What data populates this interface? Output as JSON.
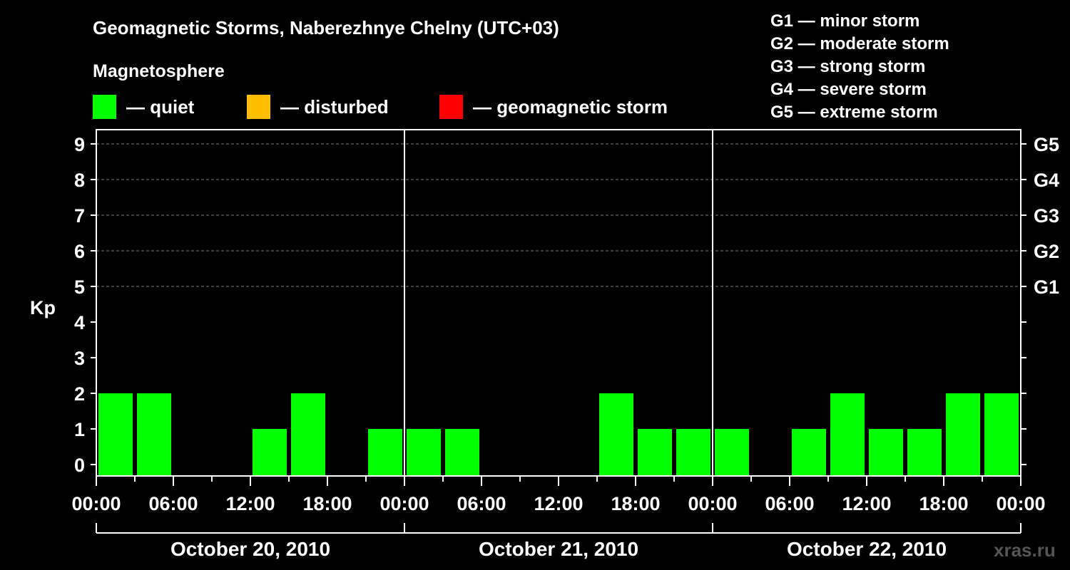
{
  "title": "Geomagnetic Storms, Naberezhnye Chelny (UTC+03)",
  "subtitle": "Magnetosphere",
  "legend": [
    {
      "label": "— quiet",
      "color": "#00ff00",
      "name": "quiet"
    },
    {
      "label": "— disturbed",
      "color": "#ffbf00",
      "name": "disturbed"
    },
    {
      "label": "— geomagnetic storm",
      "color": "#ff0000",
      "name": "storm"
    }
  ],
  "g_scale": [
    "G1 — minor storm",
    "G2 — moderate storm",
    "G3 — strong storm",
    "G4 — severe storm",
    "G5 — extreme storm"
  ],
  "watermark": "xras.ru",
  "chart_data": {
    "type": "bar",
    "title": "Geomagnetic Storms, Naberezhnye Chelny (UTC+03)",
    "ylabel": "Kp",
    "ylim": [
      0,
      9
    ],
    "y_ticks": [
      "0",
      "1",
      "2",
      "3",
      "4",
      "5",
      "6",
      "7",
      "8",
      "9"
    ],
    "right_axis_labels": [
      {
        "kp": 5,
        "label": "G1"
      },
      {
        "kp": 6,
        "label": "G2"
      },
      {
        "kp": 7,
        "label": "G3"
      },
      {
        "kp": 8,
        "label": "G4"
      },
      {
        "kp": 9,
        "label": "G5"
      }
    ],
    "x_tick_labels": [
      "00:00",
      "06:00",
      "12:00",
      "18:00",
      "00:00",
      "06:00",
      "12:00",
      "18:00",
      "00:00",
      "06:00",
      "12:00",
      "18:00",
      "00:00"
    ],
    "days": [
      "October 20, 2010",
      "October 21, 2010",
      "October 22, 2010"
    ],
    "interval_hours": 3,
    "values": [
      2,
      2,
      0,
      0,
      1,
      2,
      0,
      1,
      1,
      1,
      0,
      0,
      0,
      2,
      1,
      1,
      1,
      0,
      1,
      2,
      1,
      1,
      2,
      2
    ],
    "bar_color": "#00ff00"
  }
}
